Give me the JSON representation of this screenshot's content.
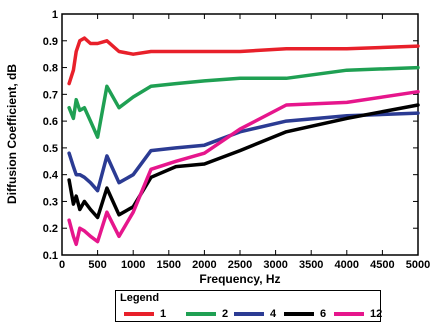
{
  "chart_data": {
    "type": "line",
    "xlabel": "Frequency, Hz",
    "ylabel": "Diffusion Coefficient, dB",
    "xlim": [
      0,
      5000
    ],
    "ylim": [
      0.1,
      1
    ],
    "xticks": [
      "0",
      "500",
      "1000",
      "1500",
      "2000",
      "2500",
      "3000",
      "3500",
      "4000",
      "4500",
      "5000"
    ],
    "yticks": [
      "0.1",
      "0.2",
      "0.3",
      "0.4",
      "0.5",
      "0.6",
      "0.7",
      "0.8",
      "0.9",
      "1"
    ],
    "grid": false,
    "legend": {
      "title": "Legend",
      "placement": "bottom"
    },
    "series": [
      {
        "name": "1",
        "color": "#e8202a",
        "x": [
          100,
          160,
          200,
          250,
          315,
          400,
          500,
          630,
          800,
          1000,
          1250,
          1600,
          2000,
          2500,
          3150,
          4000,
          5000
        ],
        "y": [
          0.74,
          0.79,
          0.86,
          0.9,
          0.91,
          0.89,
          0.89,
          0.9,
          0.86,
          0.85,
          0.86,
          0.86,
          0.86,
          0.86,
          0.87,
          0.87,
          0.88
        ]
      },
      {
        "name": "2",
        "color": "#1fa053",
        "x": [
          100,
          160,
          200,
          250,
          315,
          400,
          500,
          630,
          800,
          1000,
          1250,
          1600,
          2000,
          2500,
          3150,
          4000,
          5000
        ],
        "y": [
          0.65,
          0.61,
          0.68,
          0.64,
          0.65,
          0.6,
          0.54,
          0.73,
          0.65,
          0.69,
          0.73,
          0.74,
          0.75,
          0.76,
          0.76,
          0.79,
          0.8
        ]
      },
      {
        "name": "4",
        "color": "#2b3b93",
        "x": [
          100,
          160,
          200,
          250,
          315,
          400,
          500,
          630,
          800,
          1000,
          1250,
          1600,
          2000,
          2500,
          3150,
          4000,
          5000
        ],
        "y": [
          0.48,
          0.43,
          0.4,
          0.4,
          0.39,
          0.37,
          0.34,
          0.47,
          0.37,
          0.4,
          0.49,
          0.5,
          0.51,
          0.56,
          0.6,
          0.62,
          0.63
        ]
      },
      {
        "name": "6",
        "color": "#000000",
        "x": [
          100,
          160,
          200,
          250,
          315,
          400,
          500,
          630,
          800,
          1000,
          1250,
          1600,
          2000,
          2500,
          3150,
          4000,
          5000
        ],
        "y": [
          0.38,
          0.29,
          0.32,
          0.27,
          0.3,
          0.27,
          0.24,
          0.35,
          0.25,
          0.28,
          0.39,
          0.43,
          0.44,
          0.49,
          0.56,
          0.61,
          0.66
        ]
      },
      {
        "name": "12",
        "color": "#e6168c",
        "x": [
          100,
          160,
          200,
          250,
          315,
          400,
          500,
          630,
          800,
          1000,
          1250,
          1600,
          2000,
          2500,
          3150,
          4000,
          5000
        ],
        "y": [
          0.23,
          0.17,
          0.14,
          0.2,
          0.19,
          0.17,
          0.15,
          0.26,
          0.17,
          0.26,
          0.42,
          0.45,
          0.48,
          0.57,
          0.66,
          0.67,
          0.71
        ]
      }
    ]
  }
}
